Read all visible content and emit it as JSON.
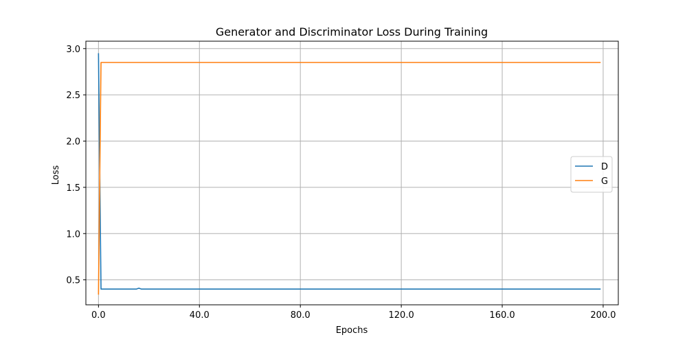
{
  "chart_data": {
    "type": "line",
    "title": "Generator and Discriminator Loss During Training",
    "xlabel": "Epochs",
    "ylabel": "Loss",
    "xlim": [
      -5,
      206
    ],
    "ylim": [
      0.23,
      3.08
    ],
    "grid": true,
    "legend_position": "center-right",
    "x_ticks": [
      0,
      40,
      80,
      120,
      160,
      200
    ],
    "x_tick_labels": [
      "0.0",
      "40.0",
      "80.0",
      "120.0",
      "160.0",
      "200.0"
    ],
    "y_ticks": [
      0.5,
      1.0,
      1.5,
      2.0,
      2.5,
      3.0
    ],
    "y_tick_labels": [
      "0.5",
      "1.0",
      "1.5",
      "2.0",
      "2.5",
      "3.0"
    ],
    "series": [
      {
        "name": "D",
        "color": "#1f77b4",
        "x": [
          0,
          1,
          15,
          16,
          17,
          18,
          199
        ],
        "y": [
          2.95,
          0.4,
          0.4,
          0.41,
          0.4,
          0.4,
          0.4
        ]
      },
      {
        "name": "G",
        "color": "#ff7f0e",
        "x": [
          0,
          1,
          199
        ],
        "y": [
          0.34,
          2.85,
          2.85
        ]
      }
    ]
  }
}
